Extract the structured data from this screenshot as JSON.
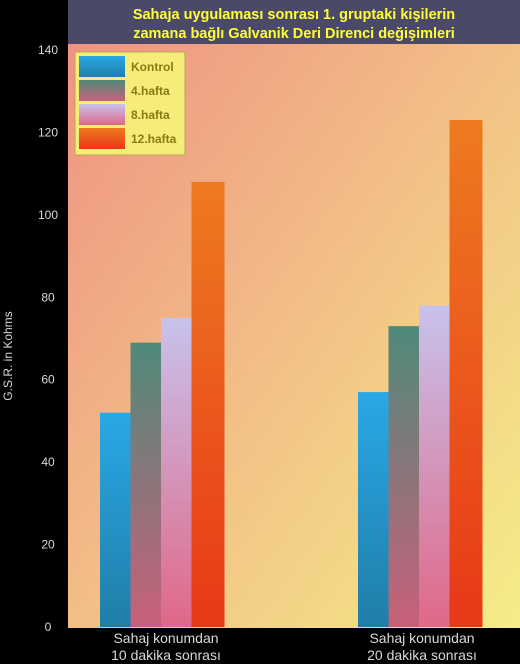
{
  "colors": {
    "background": "#000000",
    "title_text": "#ffff33",
    "title_bg": "#4a4a68",
    "legend_bg": "#f5ec7a",
    "legend_text": "#8a7a10",
    "axis_text": "#d8d8d8",
    "plot_bg_top_left": "#ef8f84",
    "plot_bg_bottom_right": "#f5ed88"
  },
  "chart_data": {
    "type": "bar",
    "title_lines": [
      "Sahaja uygulaması sonrası 1. gruptaki kişilerin",
      "zamana bağlı  Galvanik Deri Direnci değişimleri"
    ],
    "ylabel": "G.S.R. in Kohms",
    "xlabel": "",
    "ylim": [
      0,
      140
    ],
    "yticks": [
      0,
      20,
      40,
      60,
      80,
      100,
      120,
      140
    ],
    "grid": false,
    "legend_position": "top-left",
    "categories": [
      [
        "Sahaj konumdan",
        "10 dakika sonrası"
      ],
      [
        "Sahaj konumdan",
        "20 dakika sonrası"
      ]
    ],
    "series": [
      {
        "name": "Kontrol",
        "values": [
          52,
          57
        ],
        "color_top": "#2aa8e6",
        "color_bottom": "#1f7ea8"
      },
      {
        "name": "4.hafta",
        "values": [
          69,
          73
        ],
        "color_top": "#4f8a7a",
        "color_bottom": "#c8607a"
      },
      {
        "name": "8.hafta",
        "values": [
          75,
          78
        ],
        "color_top": "#c8c2ec",
        "color_bottom": "#e06888"
      },
      {
        "name": "12.hafta",
        "values": [
          108,
          123
        ],
        "color_top": "#ee7a20",
        "color_bottom": "#e83818"
      }
    ]
  }
}
